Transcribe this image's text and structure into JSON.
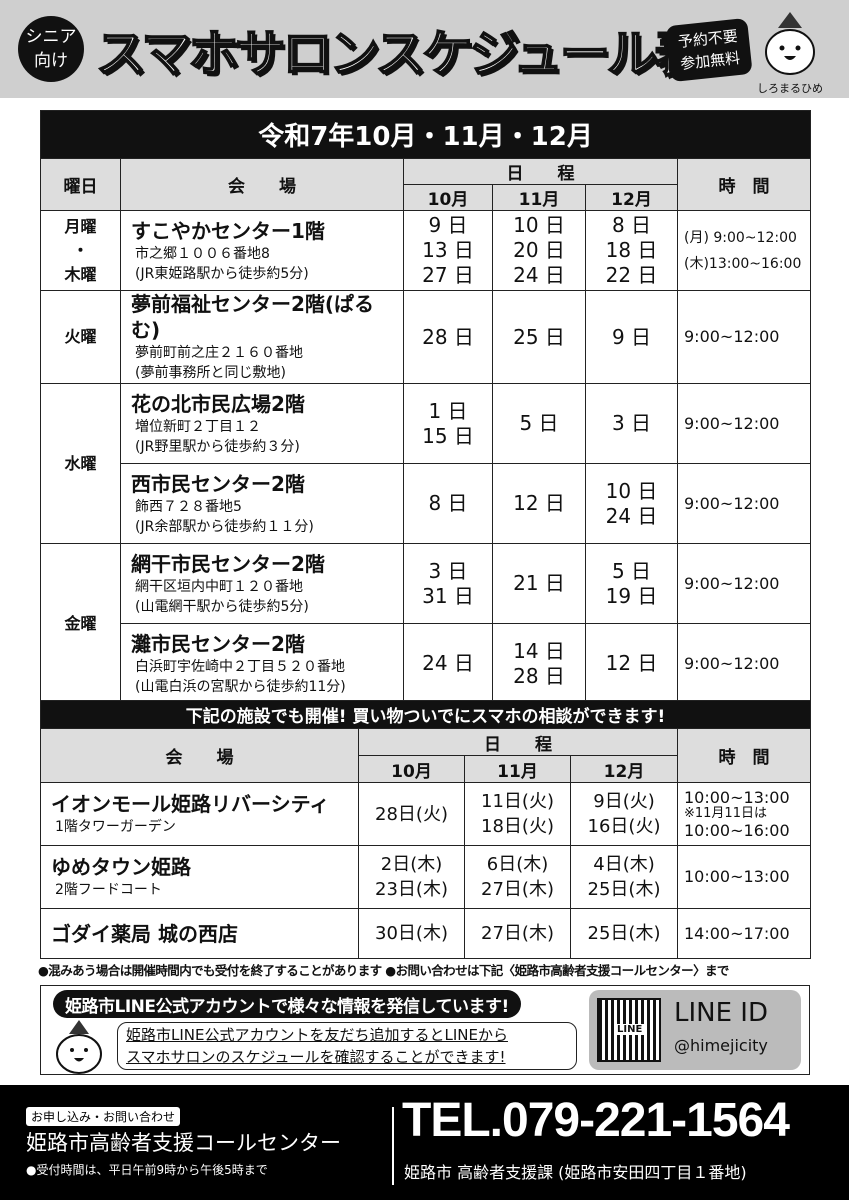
{
  "header": {
    "senior_line1": "シニア",
    "senior_line2": "向け",
    "title": "スマホサロンスケジュール表",
    "badge_line1": "予約不要",
    "badge_line2": "参加無料",
    "mascot_name": "しろまるひめ"
  },
  "table1": {
    "title": "令和7年10月・11月・12月",
    "headers": {
      "day": "曜日",
      "venue": "会　　場",
      "schedule": "日　　程",
      "oct": "10月",
      "nov": "11月",
      "dec": "12月",
      "time": "時　間"
    },
    "rows": [
      {
        "day": [
          "月曜",
          "・",
          "木曜"
        ],
        "venue": "すこやかセンター1階",
        "address": "市之郷１００６番地8",
        "access": "(JR東姫路駅から徒歩約5分)",
        "oct": [
          "9 日",
          "13 日",
          "27 日"
        ],
        "nov": [
          "10 日",
          "20 日",
          "24 日"
        ],
        "dec": [
          "8 日",
          "18 日",
          "22 日"
        ],
        "time": [
          "(月) 9:00~12:00",
          "(木)13:00~16:00"
        ]
      },
      {
        "day": [
          "火曜"
        ],
        "venue": "夢前福祉センター2階(ぱるむ)",
        "address": "夢前町前之庄２１６０番地",
        "access": "(夢前事務所と同じ敷地)",
        "oct": [
          "28 日"
        ],
        "nov": [
          "25 日"
        ],
        "dec": [
          "9 日"
        ],
        "time": [
          "9:00~12:00"
        ]
      },
      {
        "day": [
          "水曜"
        ],
        "venue": "花の北市民広場2階",
        "address": "増位新町２丁目１２",
        "access": "(JR野里駅から徒歩約３分)",
        "oct": [
          "1 日",
          "15 日"
        ],
        "nov": [
          "5 日"
        ],
        "dec": [
          "3 日"
        ],
        "time": [
          "9:00~12:00"
        ]
      },
      {
        "venue": "西市民センター2階",
        "address": "飾西７２８番地5",
        "access": "(JR余部駅から徒歩約１１分)",
        "oct": [
          "8 日"
        ],
        "nov": [
          "12 日"
        ],
        "dec": [
          "10 日",
          "24 日"
        ],
        "time": [
          "9:00~12:00"
        ]
      },
      {
        "day": [
          "金曜"
        ],
        "venue": "網干市民センター2階",
        "address": "網干区垣内中町１２０番地",
        "access": "(山電網干駅から徒歩約5分)",
        "oct": [
          "3 日",
          "31 日"
        ],
        "nov": [
          "21 日"
        ],
        "dec": [
          "5 日",
          "19 日"
        ],
        "time": [
          "9:00~12:00"
        ]
      },
      {
        "venue": "灘市民センター2階",
        "address": "白浜町宇佐崎中２丁目５２０番地",
        "access": "(山電白浜の宮駅から徒歩約11分)",
        "oct": [
          "24 日"
        ],
        "nov": [
          "14 日",
          "28 日"
        ],
        "dec": [
          "12 日"
        ],
        "time": [
          "9:00~12:00"
        ]
      }
    ]
  },
  "table2": {
    "title": "下記の施設でも開催! 買い物ついでにスマホの相談ができます!",
    "headers": {
      "venue": "会　　場",
      "schedule": "日　　程",
      "oct": "10月",
      "nov": "11月",
      "dec": "12月",
      "time": "時　間"
    },
    "rows": [
      {
        "venue": "イオンモール姫路リバーシティ",
        "sub": "1階タワーガーデン",
        "oct": [
          "28日(火)"
        ],
        "nov": [
          "11日(火)",
          "18日(火)"
        ],
        "dec": [
          "9日(火)",
          "16日(火)"
        ],
        "time": [
          "10:00~13:00",
          "※11月11日は",
          "10:00~16:00"
        ]
      },
      {
        "venue": "ゆめタウン姫路",
        "sub": "2階フードコート",
        "oct": [
          "2日(木)",
          "23日(木)"
        ],
        "nov": [
          "6日(木)",
          "27日(木)"
        ],
        "dec": [
          "4日(木)",
          "25日(木)"
        ],
        "time": [
          "10:00~13:00"
        ]
      },
      {
        "venue": "ゴダイ薬局 城の西店",
        "sub": "",
        "oct": [
          "30日(木)"
        ],
        "nov": [
          "27日(木)"
        ],
        "dec": [
          "25日(木)"
        ],
        "time": [
          "14:00~17:00"
        ]
      }
    ]
  },
  "notes": "●混みあう場合は開催時間内でも受付を終了することがあります ●お問い合わせは下記〈姫路市高齢者支援コールセンター〉まで",
  "line": {
    "headline": "姫路市LINE公式アカウントで様々な情報を発信しています!",
    "bubble_line1": "姫路市LINE公式アカウントを友だち追加するとLINEから",
    "bubble_line2": "スマホサロンのスケジュールを確認することができます!",
    "id_label": "LINE ID",
    "handle": "@himejicity",
    "qr_label": "LINE"
  },
  "footer": {
    "tag": "お申し込み・お問い合わせ",
    "center": "姫路市高齢者支援コールセンター",
    "hours": "●受付時間は、平日午前9時から午後5時まで",
    "tel": "TEL.079-221-1564",
    "address": "姫路市 高齢者支援課 (姫路市安田四丁目１番地)"
  }
}
